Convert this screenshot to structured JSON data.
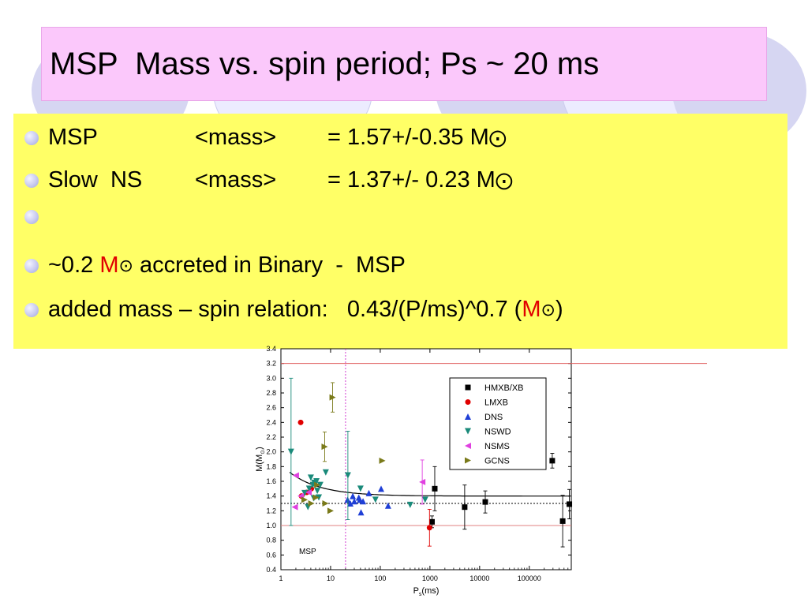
{
  "title": "MSP  Mass vs. spin period; Ps ~ 20 ms",
  "bullets": [
    {
      "parts": [
        "MSP",
        "<mass>",
        "= 1.57+/-0.35 M",
        "⨀"
      ]
    },
    {
      "parts": [
        "Slow  NS",
        "<mass>",
        "= 1.37+/- 0.23 M",
        "⨀"
      ]
    },
    {
      "parts": []
    },
    {
      "prefix": "~0.2 ",
      "unit": "M",
      "sun": "⊙",
      "suffix": " accreted in Binary  -  MSP"
    },
    {
      "prefix": "added mass – spin relation:   0.43/(P/ms)^0.7 (",
      "unit": "M",
      "sun": "⊙",
      "suffix": ")"
    }
  ],
  "colors": {
    "title_bg": "#fbc8fb",
    "content_bg": "#ffff66",
    "highlight": "#e00000",
    "HMXB/XB": "#000000",
    "LMXB": "#e00000",
    "DNS": "#1f3fd6",
    "NSWD": "#1a8a7a",
    "NSMS": "#e040e0",
    "GCNS": "#7a7a1a"
  },
  "chart_data": {
    "type": "scatter",
    "xscale": "log",
    "xlabel_main": "P",
    "xlabel_sub": "s",
    "xlabel_tail": "(ms)",
    "ylabel_main": "M(M",
    "ylabel_sub": "⊙",
    "ylabel_tail": ")",
    "xlim": [
      1,
      700000
    ],
    "ylim": [
      0.4,
      3.4
    ],
    "xticks": [
      1,
      10,
      100,
      1000,
      10000,
      100000
    ],
    "xtick_labels": [
      "1",
      "10",
      "100",
      "1000",
      "10000",
      "100000"
    ],
    "yticks": [
      0.4,
      0.6,
      0.8,
      1.0,
      1.2,
      1.4,
      1.6,
      1.8,
      2.0,
      2.2,
      2.4,
      2.6,
      2.8,
      3.0,
      3.2,
      3.4
    ],
    "ytick_labels": [
      "0.4",
      "0.6",
      "0.8",
      "1.0",
      "1.2",
      "1.4",
      "1.6",
      "1.8",
      "2.0",
      "2.2",
      "2.4",
      "2.6",
      "2.8",
      "3.0",
      "3.2",
      "3.4"
    ],
    "annotation": "MSP",
    "hlines": [
      {
        "y": 1.3,
        "style": "dotted",
        "color": "#000000"
      },
      {
        "y": 1.0,
        "style": "solid",
        "color": "#e08080"
      },
      {
        "y": 3.2,
        "style": "solid",
        "color": "#e06060"
      }
    ],
    "vlines": [
      {
        "x": 20,
        "style": "dotted",
        "color": "#d040d0"
      }
    ],
    "curve": {
      "label": "0.43/(P/ms)^0.7 + 1.4",
      "color": "#000000"
    },
    "legend_position": "top-right",
    "series": [
      {
        "name": "HMXB/XB",
        "marker": "square",
        "points": [
          [
            1100,
            1.05,
            0.08
          ],
          [
            1250,
            1.5,
            0.3
          ],
          [
            5000,
            1.25,
            0.3
          ],
          [
            13000,
            1.32,
            0.15
          ],
          [
            290000,
            1.88,
            0.1
          ],
          [
            470000,
            1.06,
            0.35
          ],
          [
            640000,
            1.29,
            0.2
          ]
        ]
      },
      {
        "name": "LMXB",
        "marker": "circle",
        "points": [
          [
            2.5,
            2.4,
            0
          ],
          [
            2.6,
            1.4,
            0
          ],
          [
            3.3,
            1.45,
            0
          ],
          [
            4.1,
            1.5,
            0
          ],
          [
            980,
            0.97,
            0.25
          ]
        ]
      },
      {
        "name": "DNS",
        "marker": "triangle-up",
        "points": [
          [
            22,
            1.35,
            0
          ],
          [
            25,
            1.3,
            0
          ],
          [
            28,
            1.4,
            0
          ],
          [
            30,
            1.33,
            0
          ],
          [
            37,
            1.38,
            0
          ],
          [
            39,
            1.35,
            0
          ],
          [
            41,
            1.18,
            0
          ],
          [
            45,
            1.33,
            0
          ],
          [
            59,
            1.44,
            0
          ],
          [
            104,
            1.5,
            0
          ],
          [
            144,
            1.27,
            0
          ]
        ]
      },
      {
        "name": "NSWD",
        "marker": "triangle-down",
        "points": [
          [
            1.6,
            2.0,
            1.0
          ],
          [
            3.0,
            1.44,
            0
          ],
          [
            3.5,
            1.25,
            0
          ],
          [
            3.7,
            1.5,
            0
          ],
          [
            4.0,
            1.65,
            0
          ],
          [
            4.4,
            1.55,
            0
          ],
          [
            4.6,
            1.37,
            0
          ],
          [
            4.7,
            1.58,
            0
          ],
          [
            5.2,
            1.6,
            0
          ],
          [
            5.4,
            1.47,
            0
          ],
          [
            5.8,
            1.38,
            0
          ],
          [
            6.2,
            1.55,
            0
          ],
          [
            8.0,
            1.72,
            0
          ],
          [
            22.3,
            1.68,
            0.6
          ],
          [
            40,
            1.5,
            0
          ],
          [
            80,
            1.35,
            0
          ],
          [
            400,
            1.28,
            0
          ],
          [
            800,
            1.35,
            0
          ]
        ]
      },
      {
        "name": "NSMS",
        "marker": "triangle-left",
        "points": [
          [
            1.9,
            1.25,
            0
          ],
          [
            2.0,
            1.68,
            0
          ],
          [
            2.5,
            1.4,
            0
          ],
          [
            3.6,
            1.45,
            0
          ],
          [
            700,
            1.59,
            0.3
          ]
        ]
      },
      {
        "name": "GCNS",
        "marker": "triangle-right",
        "points": [
          [
            3.0,
            1.35,
            0
          ],
          [
            4.1,
            1.3,
            0
          ],
          [
            5.1,
            1.38,
            0
          ],
          [
            5.4,
            1.55,
            0
          ],
          [
            7.6,
            2.07,
            0.2
          ],
          [
            7.9,
            1.3,
            0
          ],
          [
            10,
            1.2,
            0
          ],
          [
            11,
            2.74,
            0.2
          ],
          [
            110,
            1.88,
            0
          ]
        ]
      }
    ]
  }
}
